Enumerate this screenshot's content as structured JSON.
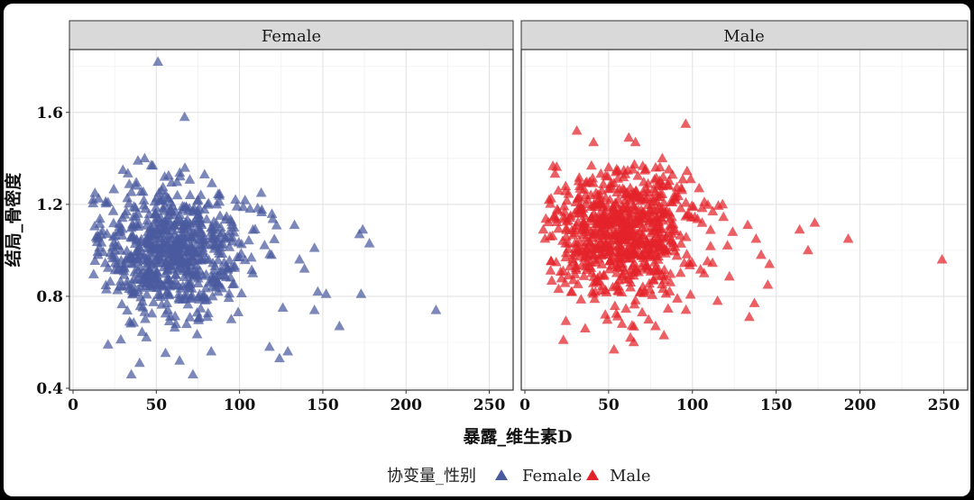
{
  "chart_data": {
    "type": "scatter",
    "xlabel": "暴露_维生素D",
    "ylabel": "结局_骨密度",
    "xlim": [
      0,
      260
    ],
    "ylim": [
      0.4,
      1.85
    ],
    "x_ticks": [
      0,
      50,
      100,
      150,
      200,
      250
    ],
    "y_ticks": [
      0.4,
      0.8,
      1.2,
      1.6
    ],
    "y_tick_labels": [
      "0.4",
      "0.8",
      "1.2",
      "1.6"
    ],
    "grid": true,
    "legend": {
      "title": "协变量_性别",
      "placement": "bottom",
      "entries": [
        {
          "label": "Female",
          "color": "#4a5a9e",
          "marker": "triangle"
        },
        {
          "label": "Male",
          "color": "#e3232a",
          "marker": "triangle"
        }
      ]
    },
    "facets": [
      {
        "strip": "Female",
        "color": "#4a5a9e",
        "cluster": {
          "x_center": 60,
          "x_sd": 22,
          "y_center": 1.0,
          "y_sd": 0.14,
          "n": 700
        },
        "points": [
          [
            51,
            1.82
          ],
          [
            67,
            1.58
          ],
          [
            12,
            1.22
          ],
          [
            39,
            1.39
          ],
          [
            43,
            1.4
          ],
          [
            47,
            1.37
          ],
          [
            79,
            1.33
          ],
          [
            55,
            1.32
          ],
          [
            113,
            1.25
          ],
          [
            160,
            0.67
          ],
          [
            172,
            1.07
          ],
          [
            178,
            1.03
          ],
          [
            174,
            1.09
          ],
          [
            218,
            0.74
          ],
          [
            173,
            0.81
          ],
          [
            152,
            0.81
          ],
          [
            147,
            0.82
          ],
          [
            145,
            0.74
          ],
          [
            124,
            0.53
          ],
          [
            129,
            0.56
          ],
          [
            35,
            0.46
          ],
          [
            72,
            0.46
          ],
          [
            40,
            0.51
          ],
          [
            139,
            0.92
          ],
          [
            145,
            1.01
          ],
          [
            133,
            1.11
          ],
          [
            21,
            0.59
          ],
          [
            118,
            0.58
          ],
          [
            136,
            0.96
          ],
          [
            126,
            0.75
          ],
          [
            15,
            0.98
          ],
          [
            20,
            0.83
          ],
          [
            83,
            0.56
          ],
          [
            64,
            0.52
          ],
          [
            108,
            0.9
          ],
          [
            95,
            0.7
          ]
        ]
      },
      {
        "strip": "Male",
        "color": "#e3232a",
        "cluster": {
          "x_center": 58,
          "x_sd": 22,
          "y_center": 1.08,
          "y_sd": 0.14,
          "n": 720
        },
        "points": [
          [
            96,
            1.55
          ],
          [
            31,
            1.52
          ],
          [
            41,
            1.47
          ],
          [
            62,
            1.49
          ],
          [
            66,
            1.47
          ],
          [
            82,
            1.4
          ],
          [
            249,
            0.96
          ],
          [
            193,
            1.05
          ],
          [
            173,
            1.12
          ],
          [
            164,
            1.09
          ],
          [
            169,
            1.0
          ],
          [
            146,
            0.94
          ],
          [
            141,
            0.98
          ],
          [
            138,
            1.05
          ],
          [
            133,
            1.11
          ],
          [
            145,
            0.85
          ],
          [
            137,
            0.77
          ],
          [
            134,
            0.71
          ],
          [
            115,
            0.78
          ],
          [
            91,
            0.79
          ],
          [
            83,
            0.63
          ],
          [
            78,
            0.67
          ],
          [
            65,
            0.6
          ],
          [
            63,
            0.62
          ],
          [
            23,
            0.61
          ],
          [
            36,
            0.66
          ],
          [
            48,
            0.72
          ],
          [
            70,
            0.73
          ],
          [
            104,
            1.27
          ],
          [
            11,
            1.09
          ],
          [
            15,
            1.06
          ],
          [
            118,
            1.2
          ],
          [
            124,
            1.08
          ],
          [
            20,
            1.26
          ],
          [
            58,
            0.68
          ],
          [
            107,
            0.9
          ]
        ]
      }
    ]
  }
}
